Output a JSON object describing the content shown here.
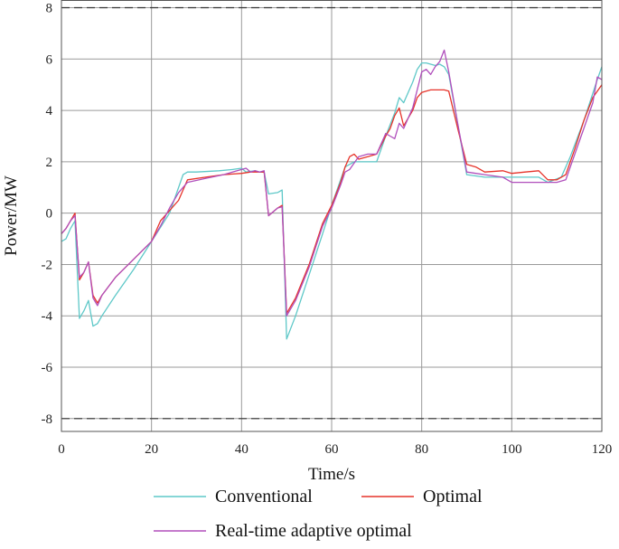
{
  "chart_data": {
    "type": "line",
    "xlabel": "Time/s",
    "ylabel": "Power/MW",
    "xlim": [
      0,
      120
    ],
    "ylim": [
      -8.5,
      8.3
    ],
    "xticks": [
      0,
      20,
      40,
      60,
      80,
      100,
      120
    ],
    "yticks": [
      -8,
      -6,
      -4,
      -2,
      0,
      2,
      4,
      6,
      8
    ],
    "grid": true,
    "limit_lines": [
      8,
      -8
    ],
    "legend_position": "bottom",
    "series": [
      {
        "name": "Conventional",
        "color": "#5ec8c8",
        "x": [
          0,
          1,
          2,
          3,
          4,
          5,
          6,
          7,
          8,
          9,
          12,
          16,
          20,
          24,
          27,
          28,
          30,
          35,
          38,
          40,
          41,
          43,
          44,
          45,
          46,
          48,
          49,
          50,
          52,
          55,
          58,
          60,
          63,
          65,
          67,
          70,
          72,
          74,
          75,
          76,
          77,
          78,
          79,
          80,
          81,
          82,
          83,
          84,
          85,
          86,
          90,
          94,
          98,
          100,
          103,
          106,
          108,
          111,
          113,
          116,
          119,
          120
        ],
        "y": [
          -1.1,
          -1.0,
          -0.6,
          -0.3,
          -4.1,
          -3.8,
          -3.4,
          -4.4,
          -4.3,
          -4.0,
          -3.2,
          -2.2,
          -1.1,
          0.0,
          1.5,
          1.6,
          1.6,
          1.65,
          1.7,
          1.75,
          1.6,
          1.65,
          1.6,
          1.6,
          0.75,
          0.8,
          0.9,
          -4.9,
          -4.0,
          -2.4,
          -0.8,
          0.3,
          1.8,
          2.0,
          2.0,
          2.0,
          3.0,
          3.9,
          4.5,
          4.3,
          4.7,
          5.1,
          5.6,
          5.85,
          5.85,
          5.8,
          5.75,
          5.8,
          5.7,
          5.4,
          1.5,
          1.4,
          1.4,
          1.4,
          1.4,
          1.4,
          1.2,
          1.4,
          2.2,
          3.6,
          5.2,
          5.7
        ]
      },
      {
        "name": "Optimal",
        "color": "#e6332a",
        "x": [
          0,
          1,
          2,
          3,
          4,
          5,
          6,
          7,
          8,
          9,
          12,
          16,
          20,
          22,
          24,
          26,
          28,
          32,
          36,
          40,
          42,
          43,
          44,
          45,
          46,
          48,
          49,
          50,
          52,
          55,
          58,
          60,
          62,
          63,
          64,
          65,
          66,
          68,
          70,
          72,
          73,
          74,
          75,
          76,
          77,
          78,
          79,
          80,
          81,
          82,
          83,
          84,
          85,
          86,
          88,
          90,
          92,
          94,
          98,
          100,
          103,
          106,
          108,
          110,
          112,
          114,
          116,
          118,
          120
        ],
        "y": [
          -0.8,
          -0.6,
          -0.3,
          0.0,
          -2.6,
          -2.3,
          -1.9,
          -3.2,
          -3.5,
          -3.2,
          -2.5,
          -1.8,
          -1.1,
          -0.3,
          0.1,
          0.5,
          1.3,
          1.4,
          1.5,
          1.55,
          1.6,
          1.6,
          1.6,
          1.6,
          -0.1,
          0.2,
          0.3,
          -3.9,
          -3.3,
          -2.0,
          -0.4,
          0.3,
          1.2,
          1.8,
          2.2,
          2.3,
          2.1,
          2.2,
          2.3,
          3.0,
          3.3,
          3.8,
          4.1,
          3.4,
          3.7,
          4.0,
          4.5,
          4.7,
          4.75,
          4.8,
          4.8,
          4.8,
          4.8,
          4.75,
          3.3,
          1.9,
          1.8,
          1.6,
          1.65,
          1.55,
          1.6,
          1.65,
          1.3,
          1.3,
          1.5,
          2.5,
          3.6,
          4.5,
          5.0
        ]
      },
      {
        "name": "Real-time adaptive optimal",
        "color": "#b04fbc",
        "x": [
          0,
          1,
          2,
          3,
          4,
          5,
          6,
          7,
          8,
          9,
          12,
          16,
          20,
          22,
          24,
          26,
          28,
          32,
          36,
          40,
          41,
          42,
          43,
          44,
          45,
          46,
          48,
          49,
          50,
          52,
          55,
          58,
          60,
          62,
          63,
          64,
          66,
          68,
          70,
          72,
          73,
          74,
          75,
          76,
          77,
          78,
          79,
          80,
          81,
          82,
          83,
          84,
          85,
          86,
          88,
          90,
          92,
          94,
          98,
          100,
          103,
          106,
          108,
          110,
          112,
          114,
          116,
          118,
          119,
          120
        ],
        "y": [
          -0.8,
          -0.6,
          -0.3,
          -0.1,
          -2.5,
          -2.3,
          -1.9,
          -3.3,
          -3.6,
          -3.2,
          -2.5,
          -1.8,
          -1.1,
          -0.5,
          0.2,
          0.8,
          1.2,
          1.35,
          1.5,
          1.7,
          1.75,
          1.6,
          1.65,
          1.6,
          1.65,
          -0.1,
          0.2,
          0.25,
          -4.0,
          -3.4,
          -2.1,
          -0.5,
          0.2,
          1.1,
          1.6,
          1.7,
          2.2,
          2.3,
          2.3,
          3.1,
          3.0,
          2.9,
          3.5,
          3.3,
          3.7,
          4.1,
          4.8,
          5.5,
          5.6,
          5.4,
          5.7,
          5.9,
          6.35,
          5.5,
          3.5,
          1.6,
          1.55,
          1.5,
          1.4,
          1.2,
          1.2,
          1.2,
          1.2,
          1.2,
          1.3,
          2.3,
          3.3,
          4.3,
          5.3,
          5.2
        ]
      }
    ]
  }
}
